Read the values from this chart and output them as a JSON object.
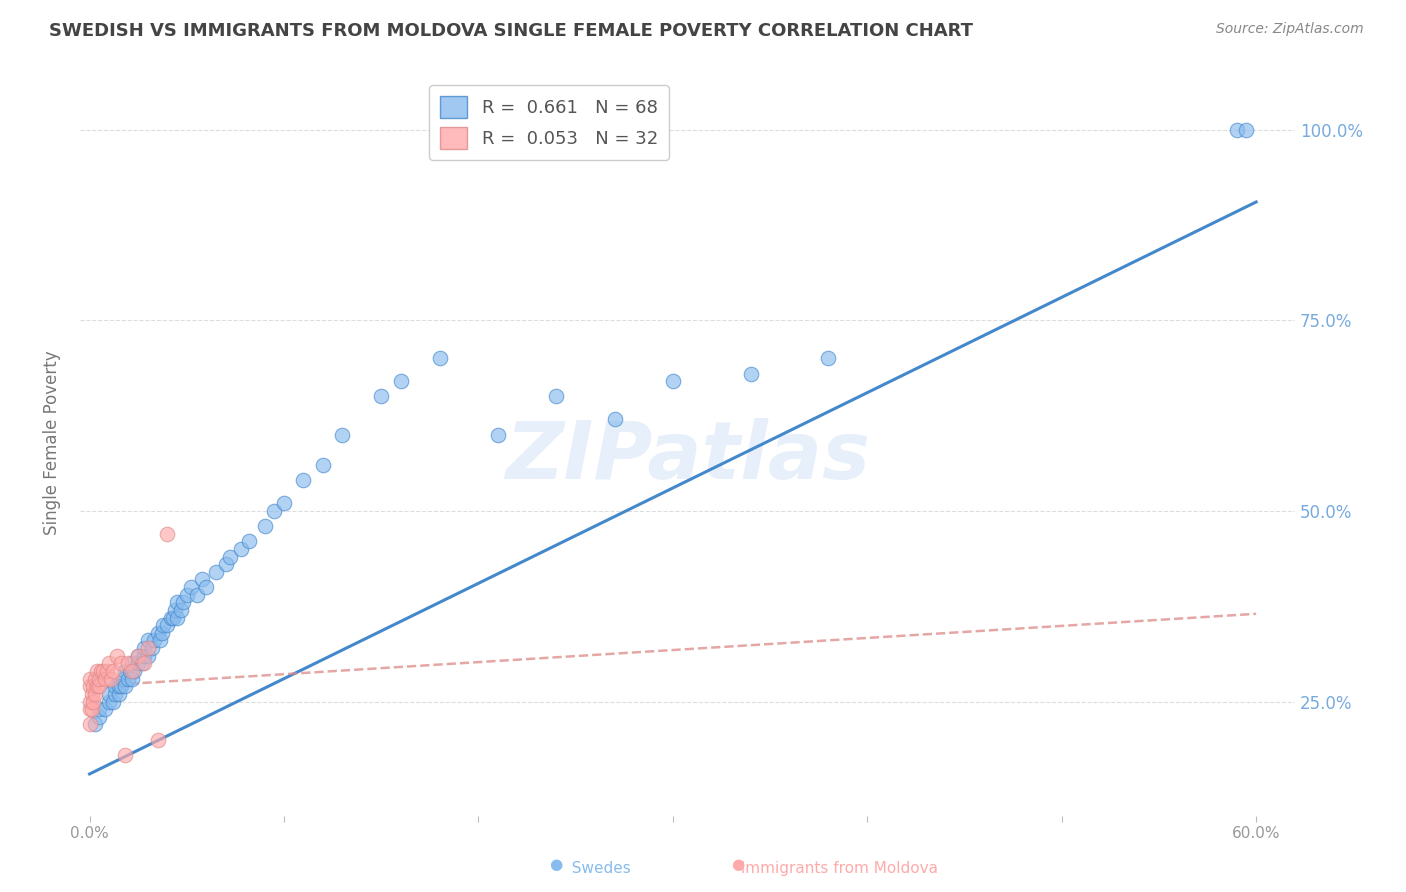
{
  "title": "SWEDISH VS IMMIGRANTS FROM MOLDOVA SINGLE FEMALE POVERTY CORRELATION CHART",
  "source": "Source: ZipAtlas.com",
  "ylabel": "Single Female Poverty",
  "ytick_labels": [
    "100.0%",
    "75.0%",
    "50.0%",
    "25.0%"
  ],
  "ytick_values": [
    1.0,
    0.75,
    0.5,
    0.25
  ],
  "xlim": [
    -0.005,
    0.62
  ],
  "ylim": [
    0.1,
    1.08
  ],
  "legend_r1": "R =  0.661   N = 68",
  "legend_r2": "R =  0.053   N = 32",
  "watermark": "ZIPatlas",
  "swedes_x": [
    0.003,
    0.005,
    0.005,
    0.008,
    0.01,
    0.01,
    0.012,
    0.013,
    0.013,
    0.015,
    0.015,
    0.016,
    0.017,
    0.018,
    0.018,
    0.02,
    0.021,
    0.022,
    0.022,
    0.023,
    0.025,
    0.025,
    0.027,
    0.028,
    0.028,
    0.03,
    0.03,
    0.032,
    0.033,
    0.035,
    0.036,
    0.037,
    0.038,
    0.04,
    0.042,
    0.043,
    0.044,
    0.045,
    0.045,
    0.047,
    0.048,
    0.05,
    0.052,
    0.055,
    0.058,
    0.06,
    0.065,
    0.07,
    0.072,
    0.078,
    0.082,
    0.09,
    0.095,
    0.1,
    0.11,
    0.12,
    0.13,
    0.15,
    0.16,
    0.18,
    0.21,
    0.24,
    0.27,
    0.3,
    0.34,
    0.38,
    0.59,
    0.595
  ],
  "swedes_y": [
    0.22,
    0.23,
    0.24,
    0.24,
    0.25,
    0.26,
    0.25,
    0.26,
    0.27,
    0.26,
    0.27,
    0.27,
    0.28,
    0.27,
    0.29,
    0.28,
    0.29,
    0.28,
    0.3,
    0.29,
    0.3,
    0.31,
    0.3,
    0.31,
    0.32,
    0.31,
    0.33,
    0.32,
    0.33,
    0.34,
    0.33,
    0.34,
    0.35,
    0.35,
    0.36,
    0.36,
    0.37,
    0.36,
    0.38,
    0.37,
    0.38,
    0.39,
    0.4,
    0.39,
    0.41,
    0.4,
    0.42,
    0.43,
    0.44,
    0.45,
    0.46,
    0.48,
    0.5,
    0.51,
    0.54,
    0.56,
    0.6,
    0.65,
    0.67,
    0.7,
    0.6,
    0.65,
    0.62,
    0.67,
    0.68,
    0.7,
    1.0,
    1.0
  ],
  "moldova_x": [
    0.0,
    0.0,
    0.0,
    0.0,
    0.0,
    0.001,
    0.001,
    0.002,
    0.002,
    0.003,
    0.003,
    0.004,
    0.004,
    0.005,
    0.005,
    0.006,
    0.007,
    0.008,
    0.009,
    0.01,
    0.011,
    0.012,
    0.014,
    0.016,
    0.018,
    0.02,
    0.022,
    0.025,
    0.028,
    0.03,
    0.035,
    0.04
  ],
  "moldova_y": [
    0.22,
    0.24,
    0.25,
    0.27,
    0.28,
    0.24,
    0.26,
    0.25,
    0.27,
    0.26,
    0.28,
    0.27,
    0.29,
    0.27,
    0.28,
    0.29,
    0.29,
    0.28,
    0.29,
    0.3,
    0.28,
    0.29,
    0.31,
    0.3,
    0.18,
    0.3,
    0.29,
    0.31,
    0.3,
    0.32,
    0.2,
    0.47
  ],
  "swedes_color": "#88bbee",
  "moldova_color": "#ffaaaa",
  "trendline_blue_color": "#4488cc",
  "trendline_pink_color": "#dd8888",
  "swede_trendline_x0": 0.0,
  "swede_trendline_y0": 0.155,
  "swede_trendline_x1": 0.6,
  "swede_trendline_y1": 0.905,
  "moldova_trendline_x0": 0.0,
  "moldova_trendline_y0": 0.27,
  "moldova_trendline_x1": 0.6,
  "moldova_trendline_y1": 0.365,
  "background_color": "#ffffff",
  "grid_color": "#dddddd",
  "xticks": [
    0.0,
    0.1,
    0.2,
    0.3,
    0.4,
    0.5,
    0.6
  ],
  "xtick_labels": [
    "0.0%",
    "",
    "",
    "",
    "",
    "",
    "60.0%"
  ]
}
